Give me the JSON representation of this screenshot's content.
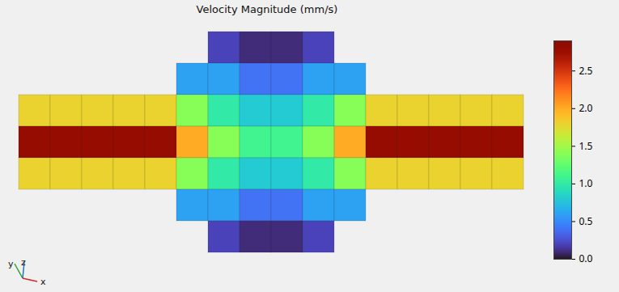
{
  "chart_data": {
    "type": "heatmap",
    "title": "Velocity Magnitude (mm/s)",
    "annotations": [
      "y",
      "z",
      "x"
    ],
    "tick_labels": false,
    "cells": [
      [
        null,
        null,
        null,
        null,
        null,
        null,
        0.2,
        0.1,
        0.1,
        0.2,
        null,
        null,
        null,
        null,
        null,
        null
      ],
      [
        null,
        null,
        null,
        null,
        null,
        0.6,
        0.6,
        0.4,
        0.4,
        0.6,
        0.6,
        null,
        null,
        null,
        null,
        null
      ],
      [
        1.8,
        1.8,
        1.8,
        1.8,
        1.8,
        1.4,
        1.0,
        0.8,
        0.8,
        1.0,
        1.4,
        1.8,
        1.8,
        1.8,
        1.8,
        1.8
      ],
      [
        2.8,
        2.8,
        2.8,
        2.8,
        2.8,
        2.0,
        1.4,
        1.1,
        1.1,
        1.4,
        2.0,
        2.8,
        2.8,
        2.8,
        2.8,
        2.8
      ],
      [
        1.8,
        1.8,
        1.8,
        1.8,
        1.8,
        1.4,
        1.0,
        0.8,
        0.8,
        1.0,
        1.4,
        1.8,
        1.8,
        1.8,
        1.8,
        1.8
      ],
      [
        null,
        null,
        null,
        null,
        null,
        0.6,
        0.6,
        0.4,
        0.4,
        0.6,
        0.6,
        null,
        null,
        null,
        null,
        null
      ],
      [
        null,
        null,
        null,
        null,
        null,
        null,
        0.2,
        0.1,
        0.1,
        0.2,
        null,
        null,
        null,
        null,
        null,
        null
      ]
    ],
    "colorbar": {
      "range": [
        0,
        2.9
      ],
      "ticks": [
        0,
        0.5,
        1,
        1.5,
        2,
        2.5
      ]
    }
  }
}
